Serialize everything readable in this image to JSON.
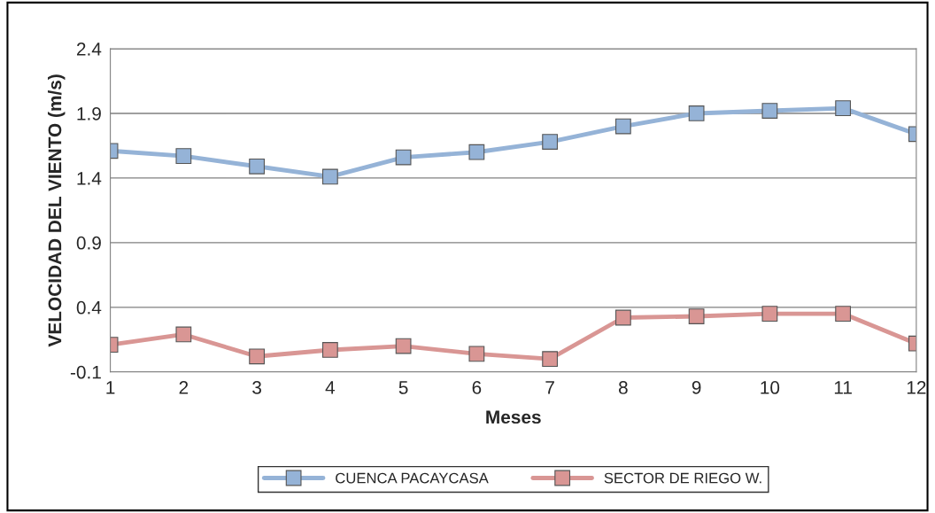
{
  "chart_data": {
    "type": "line",
    "xlabel": "Meses",
    "ylabel": "VELOCIDAD DEL VIENTO (m/s)",
    "categories": [
      "1",
      "2",
      "3",
      "4",
      "5",
      "6",
      "7",
      "8",
      "9",
      "10",
      "11",
      "12"
    ],
    "series": [
      {
        "name": "CUENCA PACAYCASA",
        "color": "#95b3d7",
        "values": [
          1.61,
          1.57,
          1.49,
          1.41,
          1.56,
          1.6,
          1.68,
          1.8,
          1.9,
          1.92,
          1.94,
          1.74
        ]
      },
      {
        "name": "SECTOR DE RIEGO W.",
        "color": "#d99694",
        "values": [
          0.11,
          0.19,
          0.02,
          0.07,
          0.1,
          0.04,
          0.0,
          0.32,
          0.33,
          0.35,
          0.35,
          0.12
        ]
      }
    ],
    "ylim": [
      -0.1,
      2.4
    ],
    "yticks": [
      {
        "value": -0.1,
        "label": "-0.1"
      },
      0.4,
      0.9,
      1.4,
      1.9,
      2.4
    ],
    "grid": "y",
    "legend": "bottom",
    "marker": "square",
    "line_style": "solid"
  }
}
